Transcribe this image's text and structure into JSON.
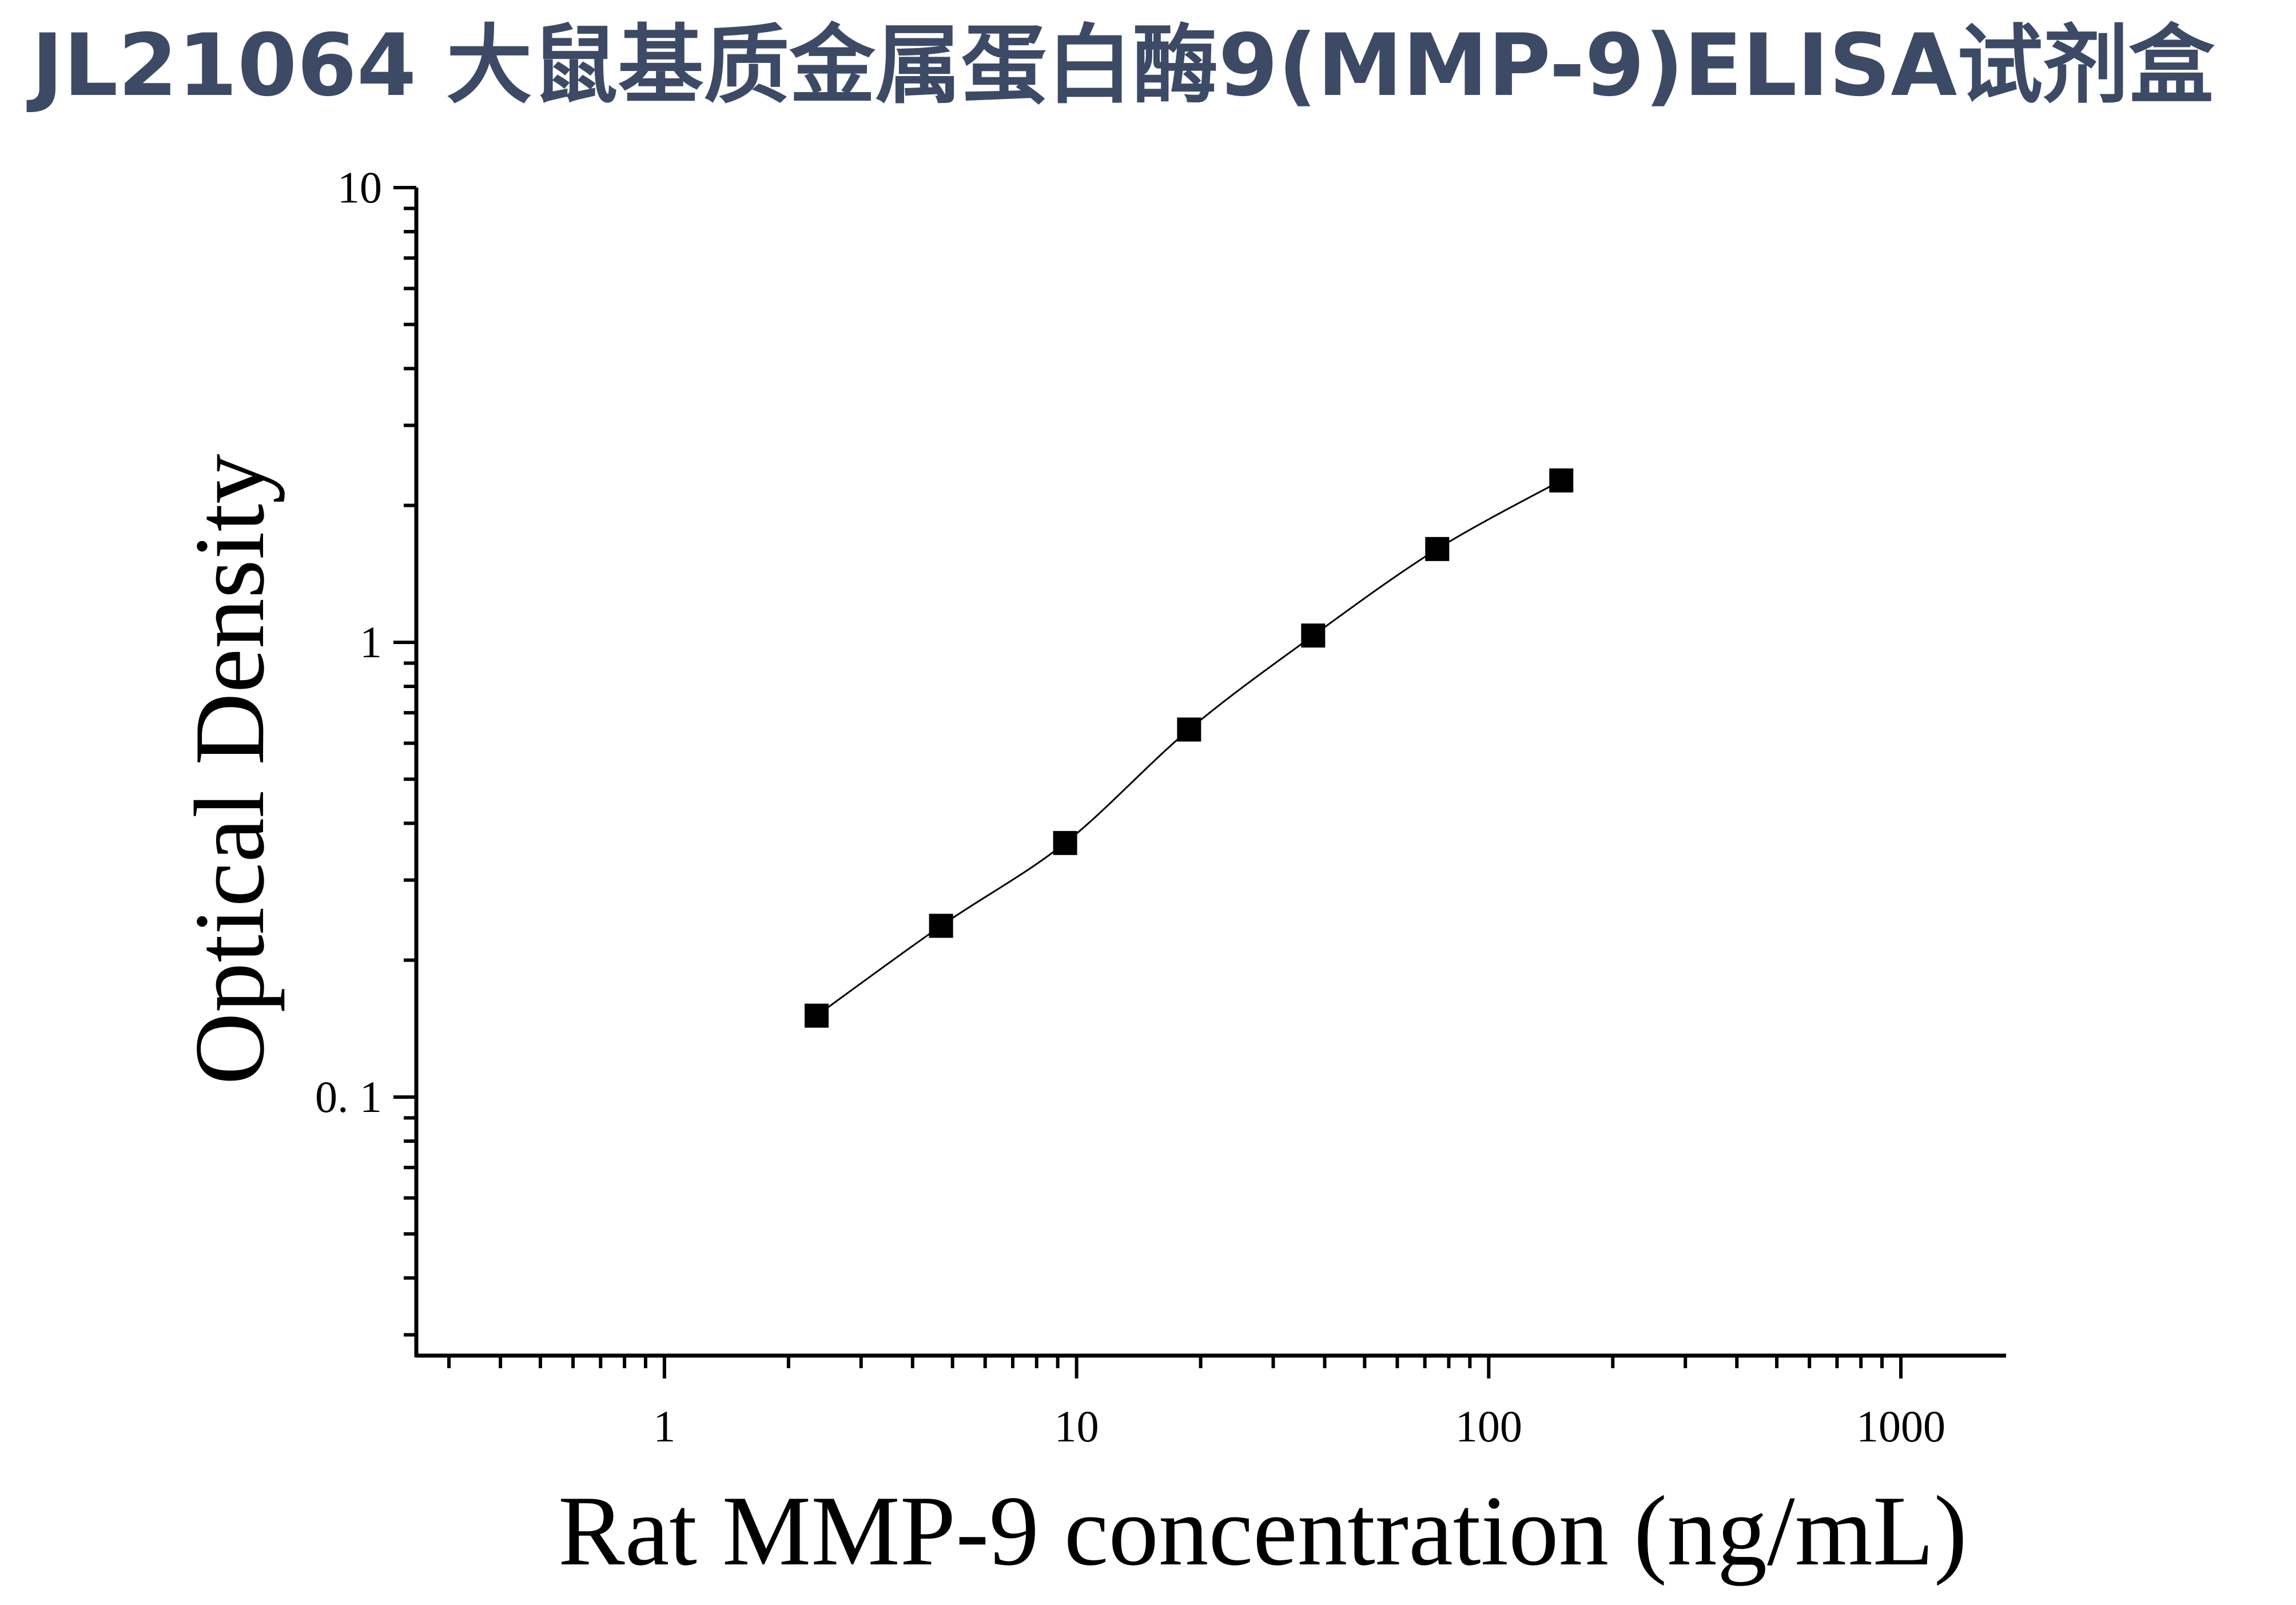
{
  "page": {
    "title": "JL21064 大鼠基质金属蛋白酶9(MMP-9)ELISA试剂盒",
    "title_color": "#3d4a66"
  },
  "chart_data": {
    "type": "scatter",
    "title": "",
    "xlabel": "Rat MMP-9 concentration (ng/mL)",
    "ylabel": "Optical Density",
    "x_scale": "log",
    "y_scale": "log",
    "xlim": [
      0.25,
      1800
    ],
    "ylim": [
      0.027,
      10
    ],
    "x_ticks": [
      1,
      10,
      100,
      1000
    ],
    "x_tick_labels": [
      "1",
      "10",
      "100",
      "1000"
    ],
    "y_ticks": [
      0.1,
      1,
      10
    ],
    "y_tick_labels": [
      "0. 1",
      "1",
      "10"
    ],
    "grid": false,
    "legend": "none",
    "series": [
      {
        "x": [
          2.34,
          4.69,
          9.38,
          18.75,
          37.5,
          75,
          150
        ],
        "y": [
          0.151,
          0.238,
          0.362,
          0.643,
          1.035,
          1.604,
          2.27
        ],
        "marker": "square",
        "fit_line": true,
        "color": "#000000"
      }
    ]
  }
}
